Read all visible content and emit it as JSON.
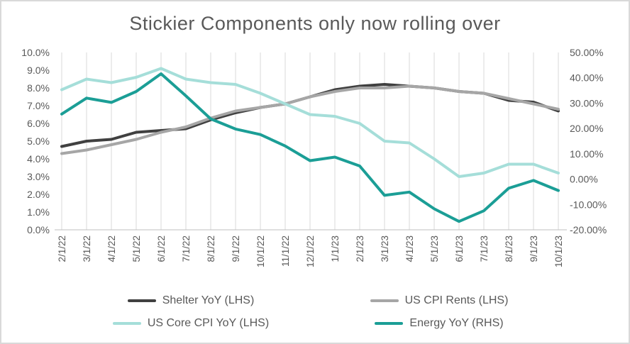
{
  "title": "Stickier Components only now rolling over",
  "colors": {
    "grid": "#d9d9d9",
    "axis_line": "#bfbfbf",
    "axis_text": "#595959",
    "border": "#d9d9d9"
  },
  "chart_data": {
    "type": "line",
    "title": "Stickier Components only now rolling over",
    "grid": "vertical-only",
    "legend_position": "bottom",
    "categories": [
      "2/1/22",
      "3/1/22",
      "4/1/22",
      "5/1/22",
      "6/1/22",
      "7/1/22",
      "8/1/22",
      "9/1/22",
      "10/1/22",
      "11/1/22",
      "12/1/22",
      "1/1/23",
      "2/1/23",
      "3/1/23",
      "4/1/23",
      "5/1/23",
      "6/1/23",
      "7/1/23",
      "8/1/23",
      "9/1/23",
      "10/1/23"
    ],
    "left_axis": {
      "min": 0,
      "max": 10,
      "tick_values": [
        0,
        1,
        2,
        3,
        4,
        5,
        6,
        7,
        8,
        9,
        10
      ],
      "tick_labels": [
        "0.0%",
        "1.0%",
        "2.0%",
        "3.0%",
        "4.0%",
        "5.0%",
        "6.0%",
        "7.0%",
        "8.0%",
        "9.0%",
        "10.0%"
      ]
    },
    "right_axis": {
      "min": -20,
      "max": 50,
      "tick_values": [
        -20,
        -10,
        0,
        10,
        20,
        30,
        40,
        50
      ],
      "tick_labels": [
        "-20.00%",
        "-10.00%",
        "0.00%",
        "10.00%",
        "20.00%",
        "30.00%",
        "40.00%",
        "50.00%"
      ]
    },
    "series": [
      {
        "key": "shelter-yoy",
        "name": "Shelter YoY (LHS)",
        "axis": "left",
        "color": "#404040",
        "values": [
          4.7,
          5.0,
          5.1,
          5.5,
          5.6,
          5.7,
          6.2,
          6.6,
          6.9,
          7.1,
          7.5,
          7.9,
          8.1,
          8.2,
          8.1,
          8.0,
          7.8,
          7.7,
          7.3,
          7.2,
          6.7
        ]
      },
      {
        "key": "us-cpi-rents",
        "name": "US CPI Rents (LHS)",
        "axis": "left",
        "color": "#a6a6a6",
        "values": [
          4.3,
          4.5,
          4.8,
          5.1,
          5.5,
          5.8,
          6.3,
          6.7,
          6.9,
          7.1,
          7.5,
          7.8,
          8.0,
          8.0,
          8.1,
          8.0,
          7.8,
          7.7,
          7.4,
          7.1,
          6.8
        ]
      },
      {
        "key": "us-core-cpi-yoy",
        "name": "US Core CPI YoY (LHS)",
        "axis": "left",
        "color": "#a5ded9",
        "values": [
          7.9,
          8.5,
          8.3,
          8.6,
          9.1,
          8.5,
          8.3,
          8.2,
          7.7,
          7.1,
          6.5,
          6.4,
          6.0,
          5.0,
          4.9,
          4.0,
          3.0,
          3.2,
          3.7,
          3.7,
          3.2
        ]
      },
      {
        "key": "energy-yoy",
        "name": "Energy YoY (RHS)",
        "axis": "right",
        "color": "#1b9e96",
        "values": [
          25.7,
          32.0,
          30.3,
          34.6,
          41.6,
          32.9,
          23.8,
          19.8,
          17.6,
          13.1,
          7.3,
          8.7,
          5.2,
          -6.4,
          -5.1,
          -11.7,
          -16.7,
          -12.5,
          -3.6,
          -0.5,
          -4.5
        ]
      }
    ]
  },
  "legend": {
    "rows": [
      [
        {
          "label": "Shelter YoY (LHS)",
          "color": "#404040"
        },
        {
          "label": "US CPI Rents (LHS)",
          "color": "#a6a6a6"
        }
      ],
      [
        {
          "label": "US Core CPI YoY (LHS)",
          "color": "#a5ded9"
        },
        {
          "label": "Energy YoY (RHS)",
          "color": "#1b9e96"
        }
      ]
    ]
  }
}
